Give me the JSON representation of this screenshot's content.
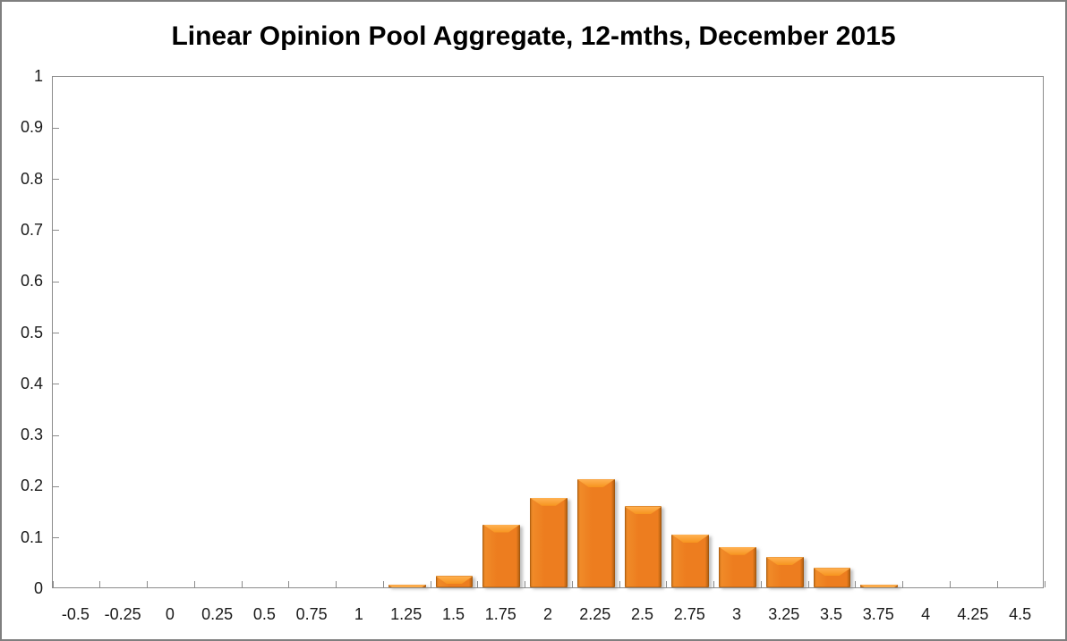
{
  "title": "Linear Opinion Pool Aggregate, 12-mths, December 2015",
  "colors": {
    "bar_fill": "#ED7D1F",
    "bar_bevel_light": "#FFB254",
    "bar_edge_dark": "#A65A0E",
    "axis_gray": "#8C8C8C",
    "text": "#1A1A1A",
    "outer_border": "#7F7F7F",
    "background": "#FFFFFF"
  },
  "chart_data": {
    "type": "bar",
    "title": "Linear Opinion Pool Aggregate, 12-mths, December 2015",
    "categories": [
      "-0.5",
      "-0.25",
      "0",
      "0.25",
      "0.5",
      "0.75",
      "1",
      "1.25",
      "1.5",
      "1.75",
      "2",
      "2.25",
      "2.5",
      "2.75",
      "3",
      "3.25",
      "3.5",
      "3.75",
      "4",
      "4.25",
      "4.5"
    ],
    "values": [
      0,
      0,
      0,
      0,
      0,
      0,
      0,
      0.005,
      0.022,
      0.123,
      0.175,
      0.211,
      0.158,
      0.103,
      0.079,
      0.059,
      0.038,
      0.005,
      0,
      0,
      0
    ],
    "xlabel": "",
    "ylabel": "",
    "ylim": [
      0,
      1
    ],
    "ytick_step": 0.1,
    "ytick_labels": [
      "0",
      "0.1",
      "0.2",
      "0.3",
      "0.4",
      "0.5",
      "0.6",
      "0.7",
      "0.8",
      "0.9",
      "1"
    ],
    "grid": false,
    "legend": null,
    "tick_direction": "inside"
  }
}
